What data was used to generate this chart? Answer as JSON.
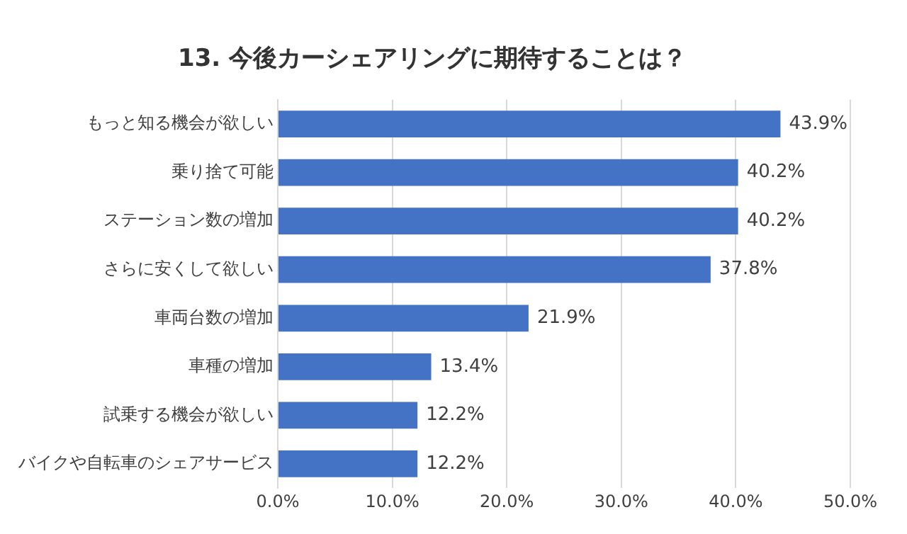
{
  "chart_data": {
    "type": "bar",
    "orientation": "horizontal",
    "title": "13. 今後カーシェアリングに期待することは？",
    "categories": [
      "もっと知る機会が欲しい",
      "乗り捨て可能",
      "ステーション数の増加",
      "さらに安くして欲しい",
      "車両台数の増加",
      "車種の増加",
      "試乗する機会が欲しい",
      "バイクや自転車のシェアサービス"
    ],
    "values": [
      43.9,
      40.2,
      40.2,
      37.8,
      21.9,
      13.4,
      12.2,
      12.2
    ],
    "value_labels": [
      "43.9%",
      "40.2%",
      "40.2%",
      "37.8%",
      "21.9%",
      "13.4%",
      "12.2%",
      "12.2%"
    ],
    "color": "#4472c4",
    "xlim": [
      0,
      50
    ],
    "xticks": [
      {
        "value": 0,
        "label": "0.0%"
      },
      {
        "value": 10,
        "label": "10.0%"
      },
      {
        "value": 20,
        "label": "20.0%"
      },
      {
        "value": 30,
        "label": "30.0%"
      },
      {
        "value": 40,
        "label": "40.0%"
      },
      {
        "value": 50,
        "label": "50.0%"
      }
    ],
    "grid": "x"
  }
}
